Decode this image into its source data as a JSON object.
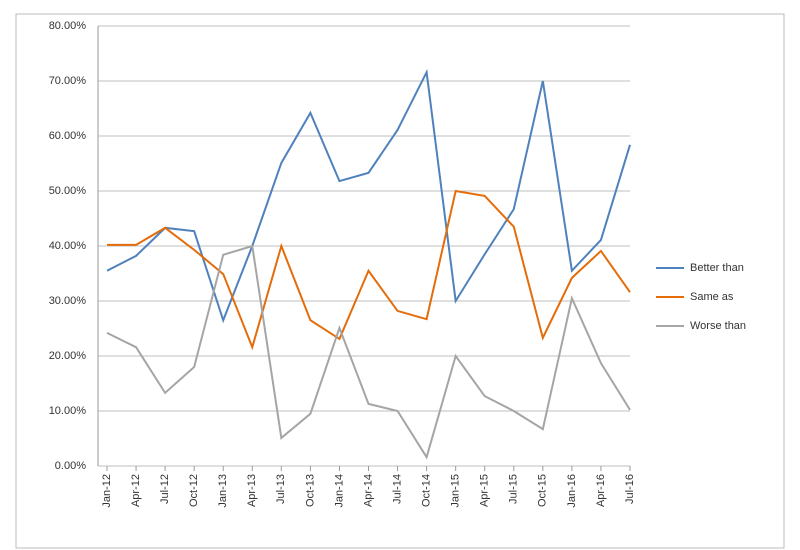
{
  "chart_data": {
    "type": "line",
    "categories": [
      "Jan-12",
      "Apr-12",
      "Jul-12",
      "Oct-12",
      "Jan-13",
      "Apr-13",
      "Jul-13",
      "Oct-13",
      "Jan-14",
      "Apr-14",
      "Jul-14",
      "Oct-14",
      "Jan-15",
      "Apr-15",
      "Jul-15",
      "Oct-15",
      "Jan-16",
      "Apr-16",
      "Jul-16"
    ],
    "series": [
      {
        "name": "Better than",
        "color": "#4f81bd",
        "values": [
          35.5,
          38.2,
          43.3,
          42.7,
          26.5,
          40,
          55.1,
          64.2,
          51.8,
          53.3,
          61.1,
          71.6,
          30,
          38.5,
          46.7,
          70,
          35.5,
          41.1,
          58.4
        ]
      },
      {
        "name": "Same as",
        "color": "#e46c0a",
        "values": [
          40.2,
          40.2,
          43.3,
          39.3,
          34.9,
          21.6,
          40,
          26.5,
          23.1,
          35.5,
          28.2,
          26.7,
          50,
          49.1,
          43.5,
          23.3,
          34.2,
          39.1,
          31.6
        ]
      },
      {
        "name": "Worse than",
        "color": "#a5a5a5",
        "values": [
          24.2,
          21.6,
          13.3,
          18,
          38.4,
          40,
          5.1,
          9.5,
          25.1,
          11.3,
          10,
          1.6,
          20,
          12.7,
          10,
          6.7,
          30.5,
          18.7,
          10.2
        ]
      }
    ],
    "ylim": [
      0,
      80
    ],
    "yticks": [
      {
        "value": 0,
        "label": "0.00%"
      },
      {
        "value": 10,
        "label": "10.00%"
      },
      {
        "value": 20,
        "label": "20.00%"
      },
      {
        "value": 30,
        "label": "30.00%"
      },
      {
        "value": 40,
        "label": "40.00%"
      },
      {
        "value": 50,
        "label": "50.00%"
      },
      {
        "value": 60,
        "label": "60.00%"
      },
      {
        "value": 70,
        "label": "70.00%"
      },
      {
        "value": 80,
        "label": "80.00%"
      }
    ],
    "grid": true,
    "legend": "right"
  }
}
